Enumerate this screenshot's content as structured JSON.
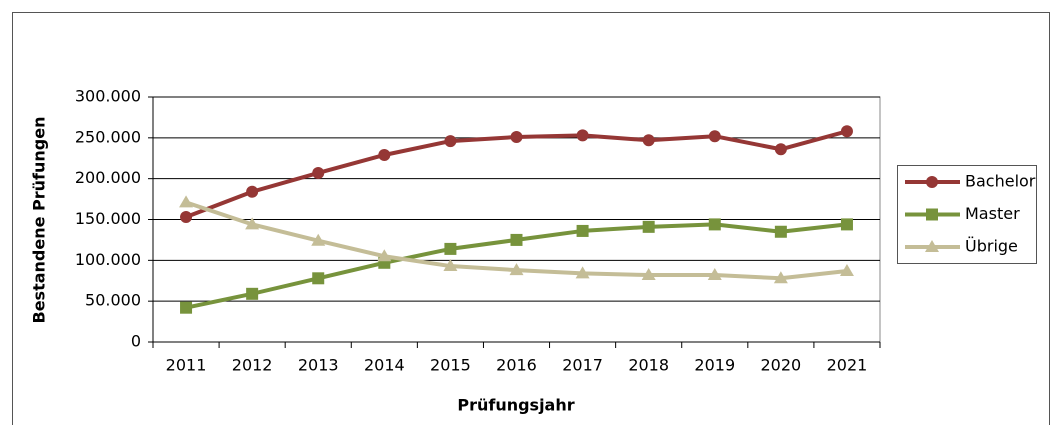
{
  "chart_data": {
    "type": "line",
    "x_label": "Prüfungsjahr",
    "y_label": "Bestandene Prüfungen",
    "categories": [
      "2011",
      "2012",
      "2013",
      "2014",
      "2015",
      "2016",
      "2017",
      "2018",
      "2019",
      "2020",
      "2021"
    ],
    "series": [
      {
        "name": "Bachelor",
        "color": "#953735",
        "marker": "circle",
        "values": [
          153000,
          184000,
          207000,
          229000,
          246000,
          251000,
          253000,
          247000,
          252000,
          236000,
          258000
        ]
      },
      {
        "name": "Master",
        "color": "#77933c",
        "marker": "square",
        "values": [
          42000,
          59000,
          78000,
          97000,
          114000,
          125000,
          136000,
          141000,
          144000,
          135000,
          144000
        ]
      },
      {
        "name": "Übrige",
        "color": "#c4bd97",
        "marker": "triangle",
        "values": [
          171000,
          144000,
          124000,
          105000,
          93000,
          88000,
          84000,
          82000,
          82000,
          78000,
          87000
        ]
      }
    ],
    "ylim": [
      0,
      300000
    ],
    "yticks": [
      0,
      {
        "value": 50000,
        "label": "50.000"
      },
      {
        "value": 100000,
        "label": "100.000"
      },
      {
        "value": 150000,
        "label": "150.000"
      },
      {
        "value": 200000,
        "label": "200.000"
      },
      {
        "value": 250000,
        "label": "250.000"
      },
      {
        "value": 300000,
        "label": "300.000"
      }
    ],
    "grid": true,
    "legend": "right"
  }
}
